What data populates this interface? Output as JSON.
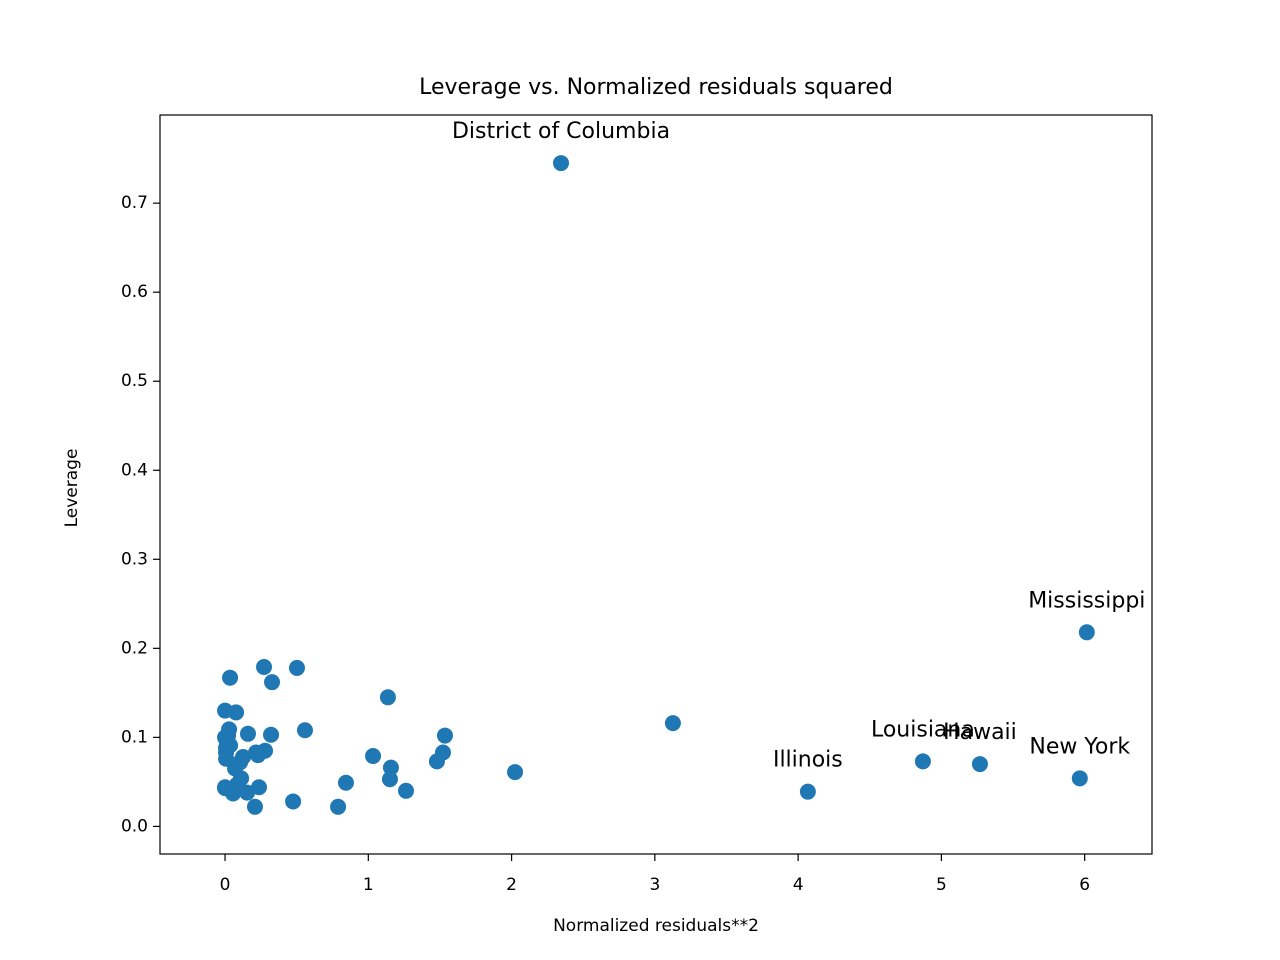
{
  "chart_data": {
    "type": "scatter",
    "title": "Leverage vs. Normalized residuals squared",
    "xlabel": "Normalized residuals**2",
    "ylabel": "Leverage",
    "color": "#1f77b4",
    "xlim": [
      -0.454,
      6.47
    ],
    "ylim": [
      -0.031,
      0.799
    ],
    "xticks": [
      0,
      1,
      2,
      3,
      4,
      5,
      6
    ],
    "yticks": [
      {
        "value": 0,
        "label": "0.0"
      },
      0.1,
      0.2,
      0.3,
      0.4,
      0.5,
      0.6,
      0.7
    ],
    "x": [
      2.345,
      6.015,
      3.126,
      4.871,
      5.269,
      5.966,
      4.068,
      2.024,
      1.535,
      1.521,
      1.479,
      1.263,
      1.158,
      1.151,
      1.137,
      1.033,
      0.844,
      0.789,
      0.558,
      0.502,
      0.475,
      0.328,
      0.321,
      0.272,
      0.279,
      0.237,
      0.23,
      0.216,
      0.209,
      0.16,
      0.126,
      0.112,
      0.105,
      0.154,
      0.077,
      0.07,
      0.056,
      0.035,
      0.028,
      0.014,
      0.007,
      0,
      0,
      0,
      0.007,
      0.021,
      0.084,
      0.007,
      0.035,
      0
    ],
    "y": [
      0.745,
      0.218,
      0.116,
      0.073,
      0.07,
      0.054,
      0.039,
      0.061,
      0.102,
      0.083,
      0.073,
      0.04,
      0.066,
      0.053,
      0.145,
      0.079,
      0.049,
      0.022,
      0.108,
      0.178,
      0.028,
      0.162,
      0.103,
      0.179,
      0.085,
      0.044,
      0.08,
      0.083,
      0.022,
      0.104,
      0.078,
      0.054,
      0.072,
      0.038,
      0.128,
      0.065,
      0.037,
      0.167,
      0.109,
      0.094,
      0.083,
      0.13,
      0.043,
      0.1,
      0.088,
      0.102,
      0.047,
      0.076,
      0.091,
      0.044
    ],
    "point_labels": [
      "District of Columbia",
      "Mississippi",
      null,
      "Louisiana",
      "Hawaii",
      "New York",
      "Illinois",
      null,
      null,
      null,
      null,
      null,
      null,
      null,
      null,
      null,
      null,
      null,
      null,
      null,
      null,
      null,
      null,
      null,
      null,
      null,
      null,
      null,
      null,
      null,
      null,
      null,
      null,
      null,
      null,
      null,
      null,
      null,
      null,
      null,
      null,
      null,
      null,
      null,
      null,
      null,
      null,
      null,
      null,
      null
    ]
  }
}
